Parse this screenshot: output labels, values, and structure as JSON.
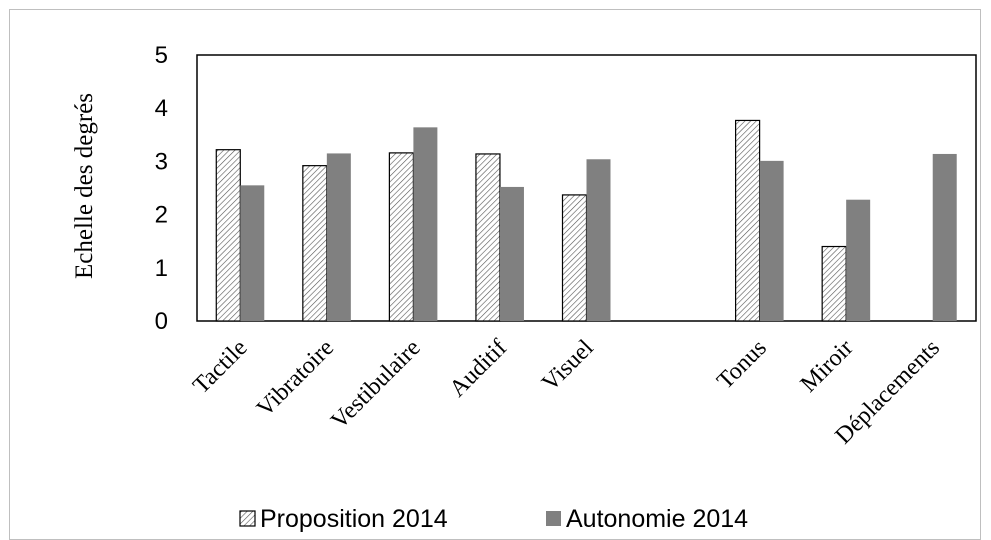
{
  "chart_data": {
    "type": "bar",
    "title": "",
    "xlabel": "",
    "ylabel": "Echelle des degrés",
    "ylim": [
      0,
      5
    ],
    "yticks": [
      0,
      1,
      2,
      3,
      4,
      5
    ],
    "grid": false,
    "legend_position": "bottom",
    "categories": [
      "Tactile",
      "Vibratoire",
      "Vestibulaire",
      "Auditif",
      "Visuel",
      "",
      "Tonus",
      "Miroir",
      "Déplacements"
    ],
    "series": [
      {
        "name": "Proposition 2014",
        "fill": "hatched",
        "color": "#ffffff",
        "values": [
          3.22,
          2.92,
          3.16,
          3.14,
          2.37,
          null,
          3.77,
          1.4,
          null
        ]
      },
      {
        "name": "Autonomie 2014",
        "fill": "solid",
        "color": "#808080",
        "values": [
          2.55,
          3.15,
          3.64,
          2.52,
          3.04,
          null,
          3.01,
          2.28,
          3.14
        ]
      }
    ]
  }
}
